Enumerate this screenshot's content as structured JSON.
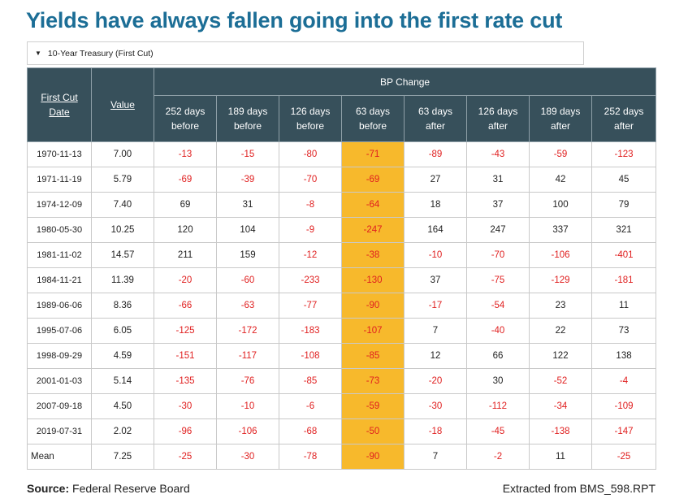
{
  "title": "Yields have always fallen going into the first rate cut",
  "dropdown": {
    "label": "10-Year Treasury (First Cut)"
  },
  "table": {
    "headers": {
      "first_cut_line1": "First Cut",
      "first_cut_line2": "Date",
      "value": "Value",
      "group": "BP Change",
      "cols": [
        [
          "252 days",
          "before"
        ],
        [
          "189 days",
          "before"
        ],
        [
          "126 days",
          "before"
        ],
        [
          "63 days",
          "before"
        ],
        [
          "63 days",
          "after"
        ],
        [
          "126 days",
          "after"
        ],
        [
          "189 days",
          "after"
        ],
        [
          "252 days",
          "after"
        ]
      ]
    },
    "rows": [
      {
        "date": "1970-11-13",
        "value": "7.00",
        "changes": [
          "-13",
          "-15",
          "-80",
          "-71",
          "-89",
          "-43",
          "-59",
          "-123"
        ]
      },
      {
        "date": "1971-11-19",
        "value": "5.79",
        "changes": [
          "-69",
          "-39",
          "-70",
          "-69",
          "27",
          "31",
          "42",
          "45"
        ]
      },
      {
        "date": "1974-12-09",
        "value": "7.40",
        "changes": [
          "69",
          "31",
          "-8",
          "-64",
          "18",
          "37",
          "100",
          "79"
        ]
      },
      {
        "date": "1980-05-30",
        "value": "10.25",
        "changes": [
          "120",
          "104",
          "-9",
          "-247",
          "164",
          "247",
          "337",
          "321"
        ]
      },
      {
        "date": "1981-11-02",
        "value": "14.57",
        "changes": [
          "211",
          "159",
          "-12",
          "-38",
          "-10",
          "-70",
          "-106",
          "-401"
        ]
      },
      {
        "date": "1984-11-21",
        "value": "11.39",
        "changes": [
          "-20",
          "-60",
          "-233",
          "-130",
          "37",
          "-75",
          "-129",
          "-181"
        ]
      },
      {
        "date": "1989-06-06",
        "value": "8.36",
        "changes": [
          "-66",
          "-63",
          "-77",
          "-90",
          "-17",
          "-54",
          "23",
          "11"
        ]
      },
      {
        "date": "1995-07-06",
        "value": "6.05",
        "changes": [
          "-125",
          "-172",
          "-183",
          "-107",
          "7",
          "-40",
          "22",
          "73"
        ]
      },
      {
        "date": "1998-09-29",
        "value": "4.59",
        "changes": [
          "-151",
          "-117",
          "-108",
          "-85",
          "12",
          "66",
          "122",
          "138"
        ]
      },
      {
        "date": "2001-01-03",
        "value": "5.14",
        "changes": [
          "-135",
          "-76",
          "-85",
          "-73",
          "-20",
          "30",
          "-52",
          "-4"
        ]
      },
      {
        "date": "2007-09-18",
        "value": "4.50",
        "changes": [
          "-30",
          "-10",
          "-6",
          "-59",
          "-30",
          "-112",
          "-34",
          "-109"
        ]
      },
      {
        "date": "2019-07-31",
        "value": "2.02",
        "changes": [
          "-96",
          "-106",
          "-68",
          "-50",
          "-18",
          "-45",
          "-138",
          "-147"
        ]
      }
    ],
    "mean": {
      "label": "Mean",
      "value": "7.25",
      "changes": [
        "-25",
        "-30",
        "-78",
        "-90",
        "7",
        "-2",
        "11",
        "-25"
      ]
    },
    "highlight_column_index": 3
  },
  "footer": {
    "source_label": "Source:",
    "source_text": " Federal Reserve Board",
    "extracted": "Extracted from BMS_598.RPT"
  },
  "colors": {
    "title": "#1c6e96",
    "header_bg": "#37505b",
    "highlight": "#f7b92c",
    "negative": "#e02020"
  }
}
